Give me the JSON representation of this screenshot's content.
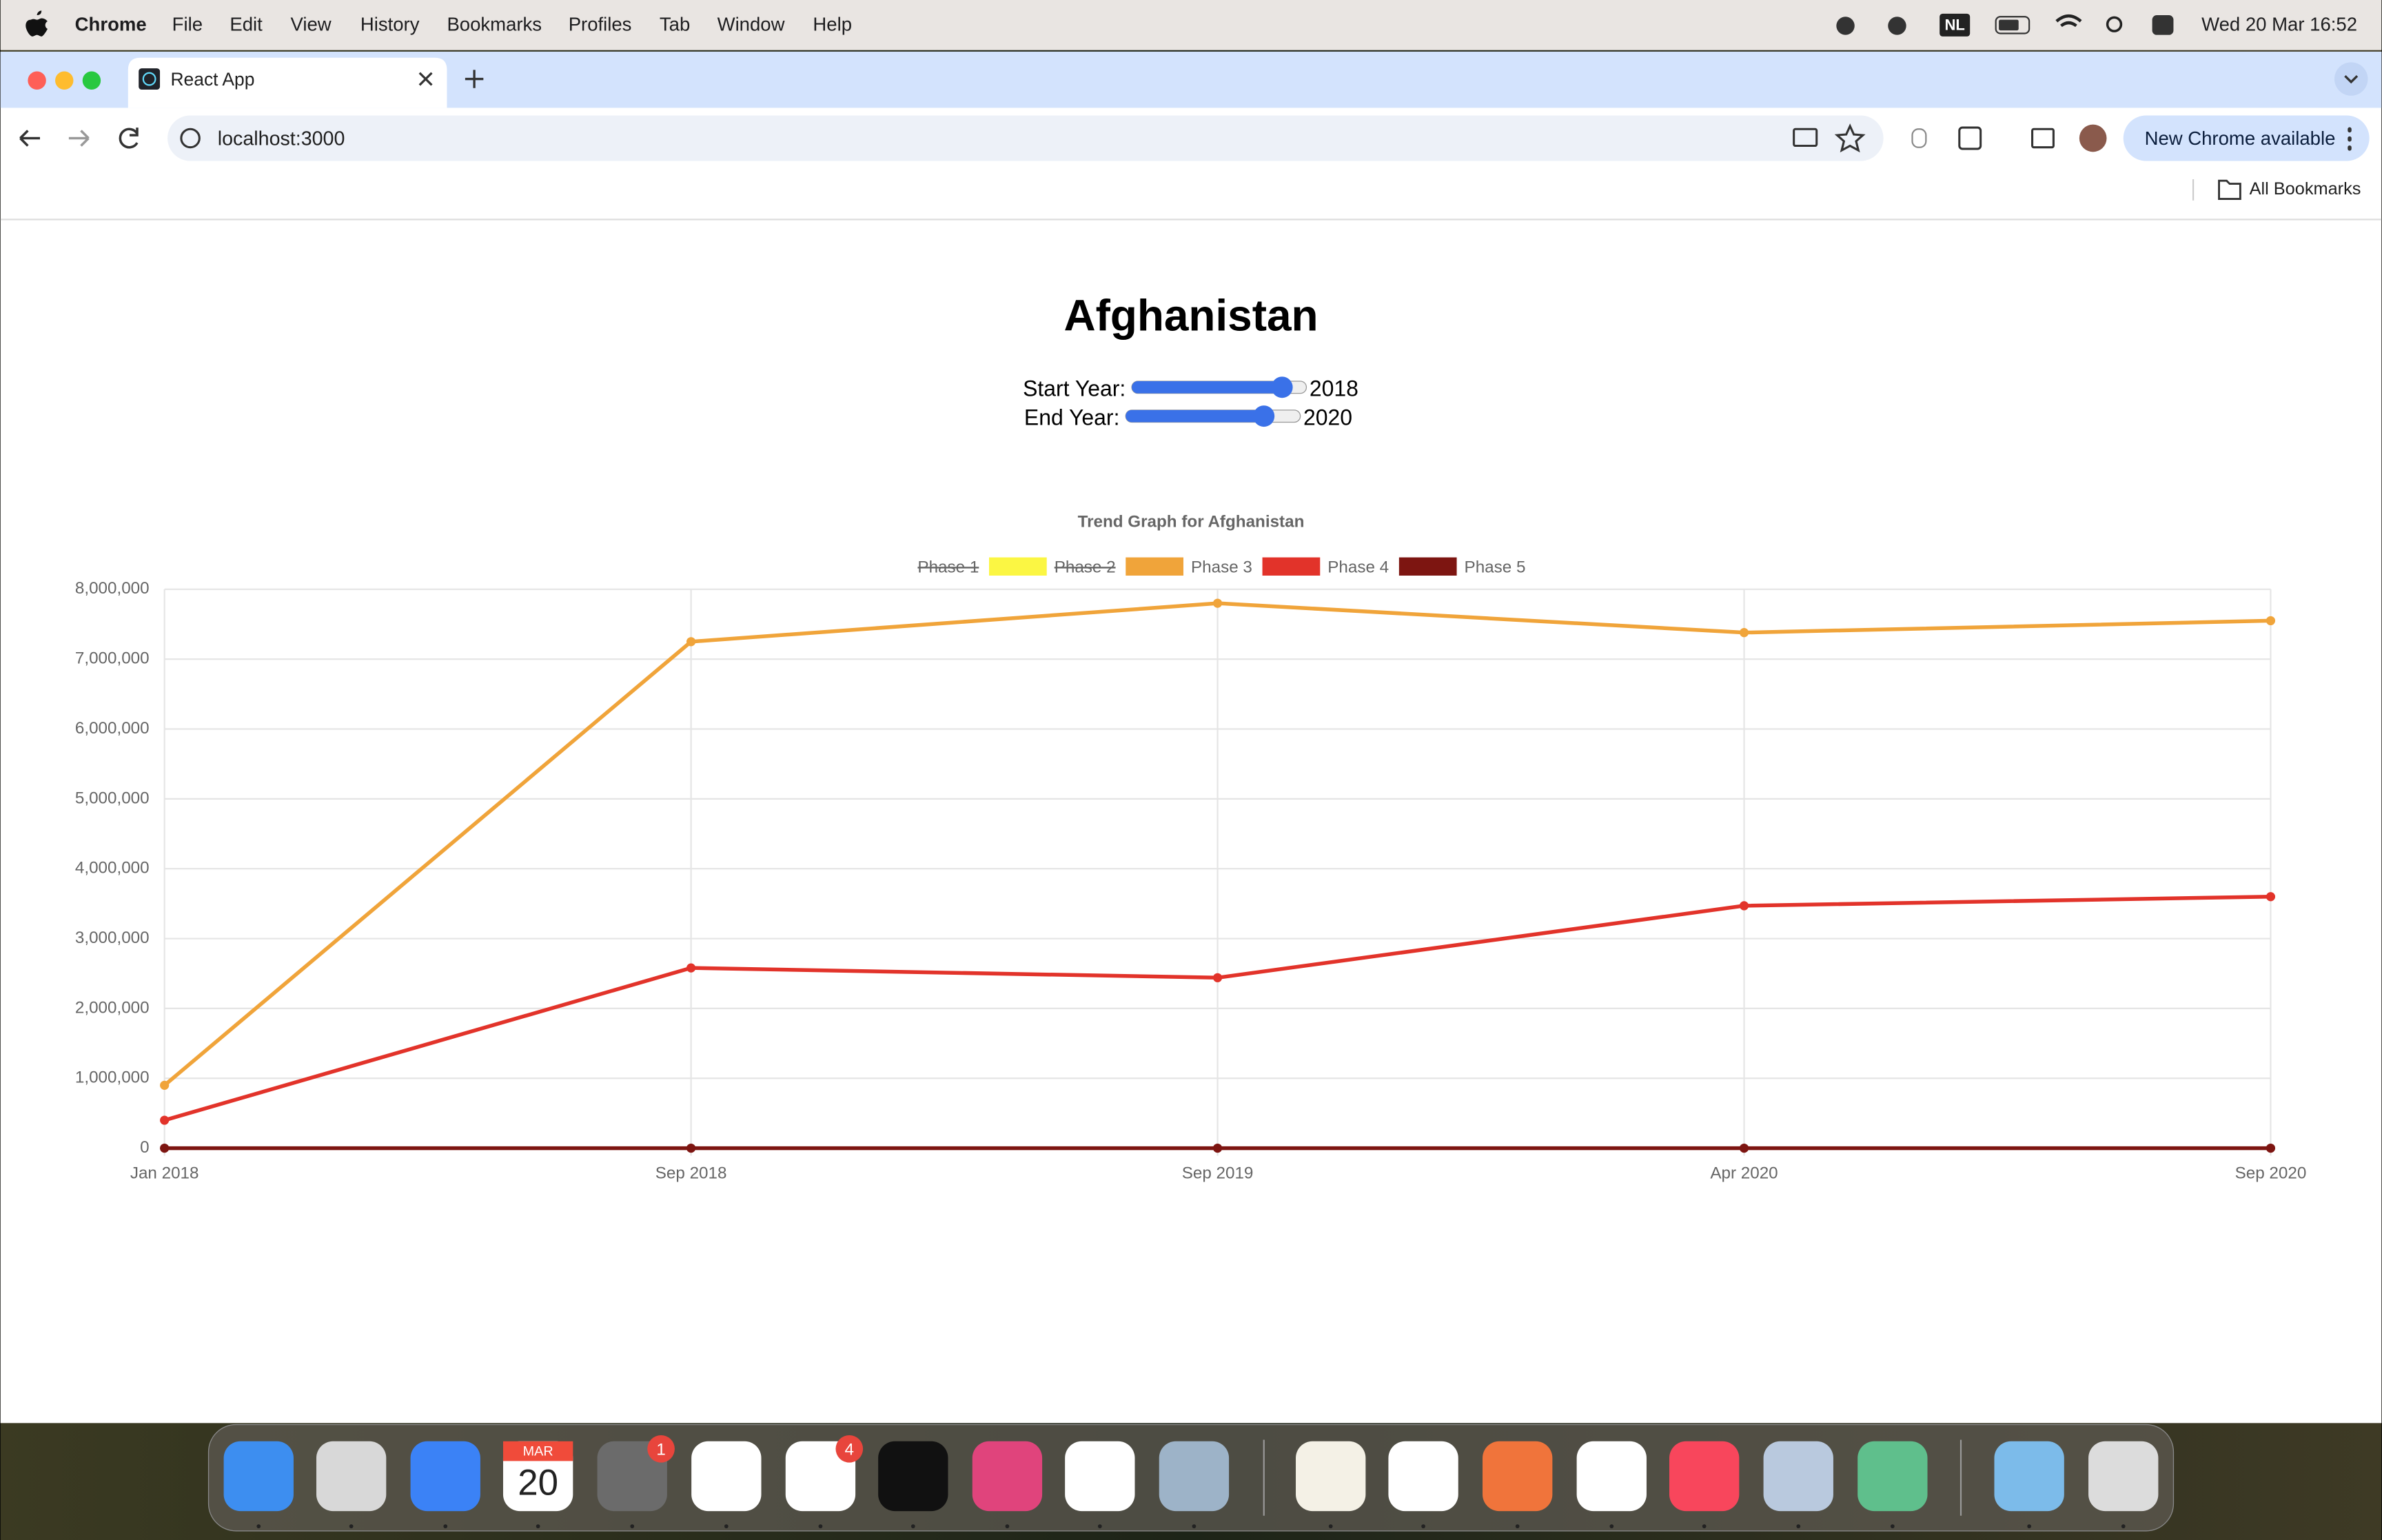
{
  "menu_bar": {
    "app": "Chrome",
    "items": [
      "File",
      "Edit",
      "View",
      "History",
      "Bookmarks",
      "Profiles",
      "Tab",
      "Window",
      "Help"
    ],
    "input_source": "NL",
    "clock": "Wed 20 Mar 16:52"
  },
  "browser": {
    "tab_title": "React App",
    "address": "localhost:3000",
    "update_button": "New Chrome available",
    "bookmarks": "All Bookmarks"
  },
  "page": {
    "title": "Afghanistan",
    "start_label": "Start Year:",
    "start_value": "2018",
    "end_label": "End Year:",
    "end_value": "2020",
    "chart": {
      "type": "line",
      "title": "Trend Graph for Afghanistan",
      "categories": [
        "Jan 2018",
        "Sep 2018",
        "Sep 2019",
        "Apr 2020",
        "Sep 2020"
      ],
      "ylim": [
        0,
        8000000
      ],
      "yticks": [
        0,
        {
          "value": 1000000,
          "label": "1,000,000"
        },
        {
          "value": 2000000,
          "label": "2,000,000"
        },
        {
          "value": 3000000,
          "label": "3,000,000"
        },
        {
          "value": 4000000,
          "label": "4,000,000"
        },
        {
          "value": 5000000,
          "label": "5,000,000"
        },
        {
          "value": 6000000,
          "label": "6,000,000"
        },
        {
          "value": 7000000,
          "label": "7,000,000"
        },
        {
          "value": 8000000,
          "label": "8,000,000"
        }
      ],
      "grid": true,
      "legend": "top",
      "series": [
        {
          "name": "Phase 1",
          "hidden": true,
          "values": [
            null,
            null,
            null,
            null,
            null
          ]
        },
        {
          "name": "Phase 2",
          "color": "#fbf643",
          "hidden": true,
          "values": [
            null,
            null,
            null,
            null,
            null
          ]
        },
        {
          "name": "Phase 3",
          "color": "#f0a43a",
          "values": [
            900000,
            7250000,
            7800000,
            7380000,
            7550000
          ]
        },
        {
          "name": "Phase 4",
          "color": "#e2332a",
          "values": [
            400000,
            2580000,
            2440000,
            3470000,
            3600000
          ]
        },
        {
          "name": "Phase 5",
          "color": "#7d1511",
          "values": [
            0,
            0,
            0,
            0,
            0
          ]
        }
      ]
    }
  },
  "dock": {
    "calendar_month": "MAR",
    "calendar_day": "20",
    "badges": [
      "1",
      "4"
    ]
  }
}
